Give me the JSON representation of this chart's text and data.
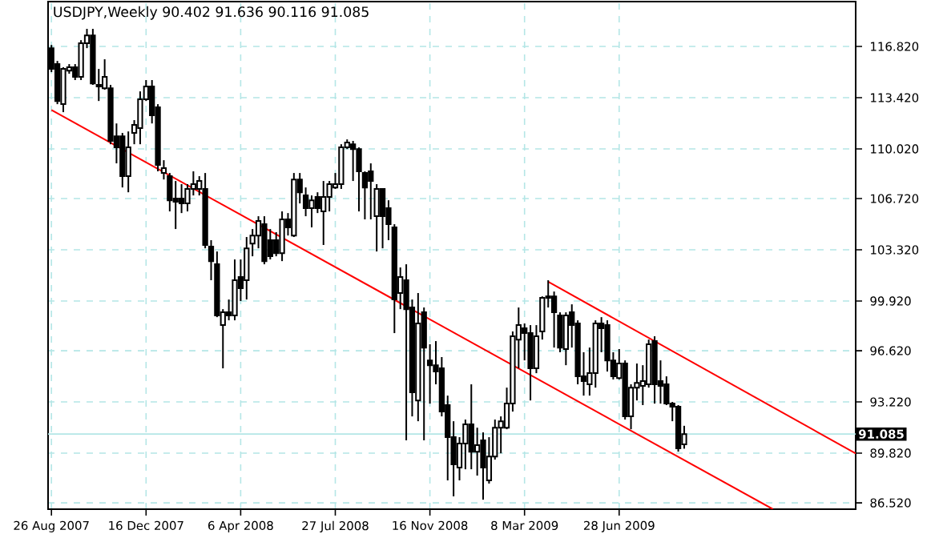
{
  "chart_data": {
    "type": "candlestick",
    "title": "USDJPY,Weekly  90.402 91.636 90.116 91.085",
    "x": [
      "2007-08-26",
      "2007-09-02",
      "2007-09-09",
      "2007-09-16",
      "2007-09-23",
      "2007-09-30",
      "2007-10-07",
      "2007-10-14",
      "2007-10-21",
      "2007-10-28",
      "2007-11-04",
      "2007-11-11",
      "2007-11-18",
      "2007-11-25",
      "2007-12-02",
      "2007-12-09",
      "2007-12-16",
      "2007-12-23",
      "2007-12-30",
      "2008-01-06",
      "2008-01-13",
      "2008-01-20",
      "2008-01-27",
      "2008-02-03",
      "2008-02-10",
      "2008-02-17",
      "2008-02-24",
      "2008-03-02",
      "2008-03-09",
      "2008-03-16",
      "2008-03-23",
      "2008-03-30",
      "2008-04-06",
      "2008-04-13",
      "2008-04-20",
      "2008-04-27",
      "2008-05-04",
      "2008-05-11",
      "2008-05-18",
      "2008-05-25",
      "2008-06-01",
      "2008-06-08",
      "2008-06-15",
      "2008-06-22",
      "2008-06-29",
      "2008-07-06",
      "2008-07-13",
      "2008-07-20",
      "2008-07-27",
      "2008-08-03",
      "2008-08-10",
      "2008-08-17",
      "2008-08-24",
      "2008-08-31",
      "2008-09-07",
      "2008-09-14",
      "2008-09-21",
      "2008-09-28",
      "2008-10-05",
      "2008-10-12",
      "2008-10-19",
      "2008-10-26",
      "2008-11-02",
      "2008-11-09",
      "2008-11-16",
      "2008-11-23",
      "2008-11-30",
      "2008-12-07",
      "2008-12-14",
      "2008-12-21",
      "2008-12-28",
      "2009-01-04",
      "2009-01-11",
      "2009-01-18",
      "2009-01-25",
      "2009-02-01",
      "2009-02-08",
      "2009-02-15",
      "2009-02-22",
      "2009-03-01",
      "2009-03-08",
      "2009-03-15",
      "2009-03-22",
      "2009-03-29",
      "2009-04-05",
      "2009-04-12",
      "2009-04-19",
      "2009-04-26",
      "2009-05-03",
      "2009-05-10",
      "2009-05-17",
      "2009-05-24",
      "2009-05-31",
      "2009-06-07",
      "2009-06-14",
      "2009-06-21",
      "2009-06-28",
      "2009-07-05",
      "2009-07-12",
      "2009-07-19",
      "2009-07-26",
      "2009-08-02",
      "2009-08-09",
      "2009-08-16",
      "2009-08-23",
      "2009-08-30",
      "2009-09-06",
      "2009-09-13"
    ],
    "ohlc": [
      [
        116.71,
        116.92,
        115.12,
        115.33
      ],
      [
        115.65,
        115.86,
        112.99,
        113.2
      ],
      [
        112.99,
        115.44,
        112.46,
        115.33
      ],
      [
        115.22,
        115.65,
        115.01,
        115.44
      ],
      [
        115.44,
        115.65,
        114.59,
        114.8
      ],
      [
        114.8,
        117.24,
        114.59,
        117.03
      ],
      [
        117.03,
        117.99,
        116.71,
        117.56
      ],
      [
        117.56,
        117.99,
        114.27,
        114.37
      ],
      [
        114.27,
        115.33,
        113.2,
        114.16
      ],
      [
        114.05,
        115.97,
        113.95,
        114.8
      ],
      [
        114.05,
        114.27,
        110.33,
        110.55
      ],
      [
        110.86,
        111.71,
        109.06,
        110.12
      ],
      [
        110.86,
        111.08,
        107.46,
        108.21
      ],
      [
        108.21,
        111.18,
        107.14,
        110.12
      ],
      [
        111.08,
        111.93,
        110.33,
        111.61
      ],
      [
        111.4,
        113.84,
        110.33,
        113.31
      ],
      [
        113.31,
        114.59,
        113.2,
        114.16
      ],
      [
        114.16,
        114.59,
        111.71,
        112.25
      ],
      [
        112.78,
        112.99,
        108.53,
        108.95
      ],
      [
        108.42,
        109.27,
        107.99,
        108.74
      ],
      [
        108.21,
        108.42,
        105.87,
        106.61
      ],
      [
        106.72,
        107.89,
        104.7,
        106.51
      ],
      [
        106.72,
        107.68,
        105.76,
        106.4
      ],
      [
        106.4,
        107.68,
        105.87,
        107.36
      ],
      [
        107.36,
        108.53,
        106.93,
        107.68
      ],
      [
        107.36,
        108.21,
        106.93,
        107.89
      ],
      [
        107.36,
        108.42,
        103.42,
        103.64
      ],
      [
        103.53,
        103.96,
        101.3,
        102.57
      ],
      [
        102.36,
        103.21,
        98.85,
        98.96
      ],
      [
        98.32,
        99.38,
        95.45,
        99.17
      ],
      [
        99.17,
        100.02,
        98.64,
        98.96
      ],
      [
        98.96,
        102.68,
        98.64,
        101.3
      ],
      [
        101.51,
        102.68,
        99.92,
        100.77
      ],
      [
        101.3,
        104.17,
        100.02,
        103.42
      ],
      [
        103.74,
        104.7,
        102.89,
        104.27
      ],
      [
        104.27,
        105.55,
        103.42,
        105.23
      ],
      [
        105.02,
        105.55,
        102.36,
        102.57
      ],
      [
        103.96,
        104.7,
        102.68,
        102.89
      ],
      [
        103.96,
        104.49,
        102.89,
        103.1
      ],
      [
        103.1,
        105.87,
        102.57,
        105.34
      ],
      [
        105.34,
        105.76,
        104.27,
        104.81
      ],
      [
        104.27,
        108.42,
        104.17,
        107.99
      ],
      [
        107.99,
        108.42,
        106.4,
        107.14
      ],
      [
        106.93,
        107.46,
        105.55,
        106.08
      ],
      [
        106.08,
        106.93,
        104.81,
        106.61
      ],
      [
        106.83,
        107.14,
        105.76,
        106.08
      ],
      [
        105.87,
        107.89,
        103.64,
        106.83
      ],
      [
        106.83,
        107.89,
        105.87,
        107.68
      ],
      [
        107.46,
        108.42,
        107.36,
        107.68
      ],
      [
        107.68,
        110.33,
        107.36,
        110.12
      ],
      [
        110.12,
        110.65,
        110.01,
        110.44
      ],
      [
        110.33,
        110.55,
        107.89,
        110.01
      ],
      [
        110.01,
        110.12,
        105.87,
        108.53
      ],
      [
        108.42,
        108.53,
        105.34,
        107.46
      ],
      [
        108.53,
        109.06,
        105.34,
        107.89
      ],
      [
        105.55,
        107.68,
        103.21,
        107.36
      ],
      [
        107.36,
        107.36,
        103.42,
        105.55
      ],
      [
        106.08,
        106.61,
        103.96,
        105.02
      ],
      [
        104.81,
        105.02,
        97.79,
        100.02
      ],
      [
        100.45,
        102.15,
        99.38,
        101.51
      ],
      [
        101.3,
        102.36,
        90.67,
        99.38
      ],
      [
        99.49,
        100.02,
        92.26,
        93.86
      ],
      [
        93.32,
        100.45,
        91.94,
        98.43
      ],
      [
        99.17,
        99.49,
        90.67,
        96.83
      ],
      [
        95.98,
        97.05,
        93.11,
        95.66
      ],
      [
        95.66,
        97.26,
        94.39,
        95.24
      ],
      [
        95.45,
        96.2,
        92.26,
        92.58
      ],
      [
        93.01,
        93.64,
        88.01,
        90.88
      ],
      [
        90.88,
        91.94,
        86.95,
        89.07
      ],
      [
        88.86,
        90.88,
        88.01,
        90.46
      ],
      [
        90.46,
        92.05,
        88.75,
        91.73
      ],
      [
        91.73,
        94.39,
        88.75,
        89.92
      ],
      [
        89.92,
        91.51,
        88.33,
        90.35
      ],
      [
        90.67,
        91.2,
        86.73,
        88.86
      ],
      [
        88.01,
        90.88,
        87.8,
        89.6
      ],
      [
        89.6,
        92.05,
        89.39,
        91.51
      ],
      [
        91.51,
        92.26,
        89.81,
        91.94
      ],
      [
        91.51,
        94.17,
        91.41,
        93.11
      ],
      [
        93.11,
        97.9,
        92.58,
        97.58
      ],
      [
        97.36,
        99.49,
        95.45,
        98.32
      ],
      [
        98.11,
        98.43,
        95.98,
        97.79
      ],
      [
        97.79,
        98.32,
        93.32,
        95.45
      ],
      [
        95.45,
        98.32,
        95.13,
        97.58
      ],
      [
        97.9,
        100.23,
        97.36,
        100.13
      ],
      [
        100.13,
        101.3,
        99.49,
        100.23
      ],
      [
        100.23,
        100.55,
        96.83,
        99.17
      ],
      [
        98.96,
        99.17,
        96.52,
        96.83
      ],
      [
        96.73,
        99.17,
        95.66,
        98.96
      ],
      [
        99.17,
        99.7,
        96.83,
        98.32
      ],
      [
        98.43,
        98.64,
        94.39,
        94.92
      ],
      [
        94.92,
        96.52,
        93.64,
        94.6
      ],
      [
        94.39,
        96.83,
        93.64,
        95.13
      ],
      [
        95.13,
        98.64,
        94.17,
        98.43
      ],
      [
        98.43,
        98.85,
        96.52,
        98.11
      ],
      [
        98.32,
        98.64,
        95.24,
        95.98
      ],
      [
        95.98,
        96.52,
        94.71,
        94.92
      ],
      [
        94.81,
        96.73,
        94.71,
        95.77
      ],
      [
        95.77,
        95.98,
        92.05,
        92.26
      ],
      [
        92.26,
        94.39,
        91.41,
        94.17
      ],
      [
        94.17,
        95.77,
        93.32,
        94.49
      ],
      [
        94.28,
        95.66,
        93.01,
        94.6
      ],
      [
        94.39,
        97.36,
        94.17,
        97.05
      ],
      [
        97.26,
        97.58,
        93.11,
        94.39
      ],
      [
        94.6,
        95.98,
        93.11,
        94.28
      ],
      [
        94.39,
        94.92,
        93.01,
        93.11
      ],
      [
        93.11,
        93.22,
        91.94,
        92.9
      ],
      [
        92.9,
        93.01,
        89.92,
        90.14
      ],
      [
        90.402,
        91.636,
        90.116,
        91.085
      ]
    ],
    "series": [
      {
        "type": "line",
        "x": [
          "2007-08-26",
          "2009-12-27"
        ],
        "values": [
          112.6,
          86.1
        ],
        "color": "#ff0000"
      },
      {
        "type": "line",
        "x": [
          "2009-04-05",
          "2010-04-04"
        ],
        "values": [
          101.2,
          89.8
        ],
        "color": "#ff0000"
      }
    ],
    "xlim": [
      "2007-08-22",
      "2010-04-04"
    ],
    "xticks": [
      {
        "value": "2007-08-26",
        "label": "26 Aug 2007"
      },
      {
        "value": "2007-12-16",
        "label": "16 Dec 2007"
      },
      {
        "value": "2008-04-06",
        "label": "6 Apr 2008"
      },
      {
        "value": "2008-07-27",
        "label": "27 Jul 2008"
      },
      {
        "value": "2008-11-16",
        "label": "16 Nov 2008"
      },
      {
        "value": "2009-03-08",
        "label": "8 Mar 2009"
      },
      {
        "value": "2009-06-28",
        "label": "28 Jun 2009"
      }
    ],
    "ylim": [
      86.1,
      119.8
    ],
    "yticks": [
      {
        "value": 86.52,
        "label": "86.520"
      },
      {
        "value": 89.82,
        "label": "89.820"
      },
      {
        "value": 93.22,
        "label": "93.220"
      },
      {
        "value": 96.62,
        "label": "96.620"
      },
      {
        "value": 99.92,
        "label": "99.920"
      },
      {
        "value": 103.32,
        "label": "103.320"
      },
      {
        "value": 106.72,
        "label": "106.720"
      },
      {
        "value": 110.02,
        "label": "110.020"
      },
      {
        "value": 113.42,
        "label": "113.420"
      },
      {
        "value": 116.82,
        "label": "116.820"
      }
    ],
    "grid": true,
    "ref_lines": [
      {
        "axis": "y",
        "value": 91.085,
        "label": "91.085",
        "color": "#b4e6e6"
      }
    ]
  }
}
